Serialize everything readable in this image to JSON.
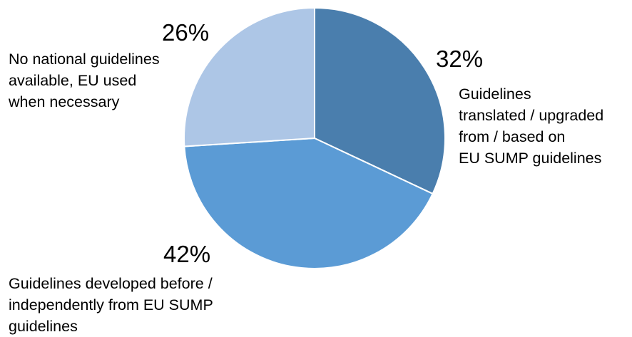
{
  "chart_data": {
    "type": "pie",
    "start_angle_deg": 0,
    "direction": "clockwise",
    "slices": [
      {
        "value": 32,
        "value_label": "32%",
        "label_lines": [
          "Guidelines",
          "translated / upgraded",
          "from / based on",
          "EU SUMP guidelines"
        ],
        "color": "#4a7ead"
      },
      {
        "value": 42,
        "value_label": "42%",
        "label_lines": [
          "Guidelines developed before /",
          "independently from EU SUMP",
          "guidelines"
        ],
        "color": "#5b9bd5"
      },
      {
        "value": 26,
        "value_label": "26%",
        "label_lines": [
          "No national guidelines",
          "available, EU used",
          "when necessary"
        ],
        "color": "#adc6e6"
      }
    ]
  }
}
